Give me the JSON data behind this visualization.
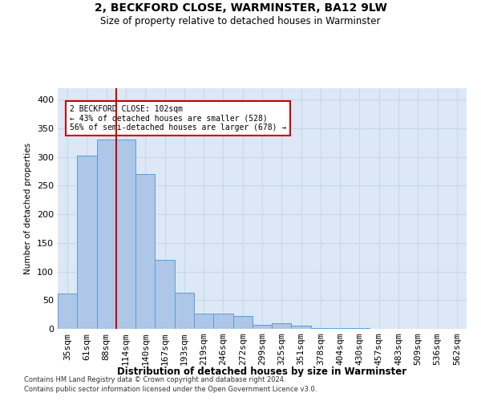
{
  "title1": "2, BECKFORD CLOSE, WARMINSTER, BA12 9LW",
  "title2": "Size of property relative to detached houses in Warminster",
  "xlabel": "Distribution of detached houses by size in Warminster",
  "ylabel": "Number of detached properties",
  "categories": [
    "35sqm",
    "61sqm",
    "88sqm",
    "114sqm",
    "140sqm",
    "167sqm",
    "193sqm",
    "219sqm",
    "246sqm",
    "272sqm",
    "299sqm",
    "325sqm",
    "351sqm",
    "378sqm",
    "404sqm",
    "430sqm",
    "457sqm",
    "483sqm",
    "509sqm",
    "536sqm",
    "562sqm"
  ],
  "values": [
    62,
    303,
    331,
    331,
    270,
    120,
    63,
    27,
    27,
    22,
    7,
    10,
    5,
    2,
    1,
    1,
    0,
    0,
    0,
    0,
    0
  ],
  "bar_color": "#aec6e8",
  "bar_edge_color": "#5a9fd4",
  "vline_x": 2.5,
  "vline_color": "#cc0000",
  "annotation_line1": "2 BECKFORD CLOSE: 102sqm",
  "annotation_line2": "← 43% of detached houses are smaller (528)",
  "annotation_line3": "56% of semi-detached houses are larger (678) →",
  "annotation_box_color": "#ffffff",
  "annotation_box_edge": "#cc0000",
  "ylim": [
    0,
    420
  ],
  "yticks": [
    0,
    50,
    100,
    150,
    200,
    250,
    300,
    350,
    400
  ],
  "grid_color": "#c8d8e8",
  "bg_color": "#dce8f5",
  "footer1": "Contains HM Land Registry data © Crown copyright and database right 2024.",
  "footer2": "Contains public sector information licensed under the Open Government Licence v3.0."
}
